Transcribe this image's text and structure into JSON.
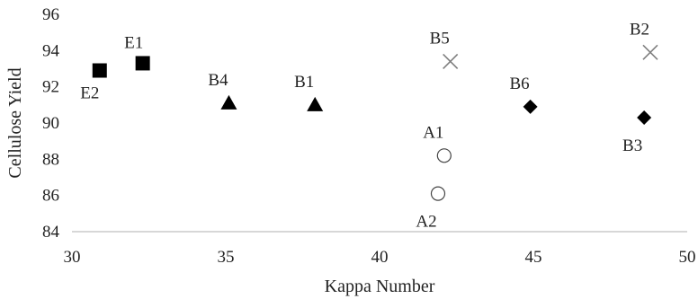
{
  "chart_data": {
    "type": "scatter",
    "xlabel": "Kappa Number",
    "ylabel": "Cellulose Yield",
    "xlim": [
      30,
      50
    ],
    "ylim": [
      84,
      96
    ],
    "xticks": [
      "30",
      "35",
      "40",
      "45",
      "50"
    ],
    "yticks": [
      "84",
      "86",
      "88",
      "90",
      "92",
      "94",
      "96"
    ],
    "grid": false,
    "legend": "none",
    "series": [
      {
        "marker": "square",
        "color": "#000000",
        "points": [
          {
            "label": "E1",
            "x": 32.3,
            "y": 93.3,
            "label_pos": "upper-left"
          },
          {
            "label": "E2",
            "x": 30.9,
            "y": 92.9,
            "label_pos": "lower-left"
          }
        ]
      },
      {
        "marker": "triangle",
        "color": "#000000",
        "points": [
          {
            "label": "B4",
            "x": 35.1,
            "y": 91.1,
            "label_pos": "above-left"
          },
          {
            "label": "B1",
            "x": 37.9,
            "y": 91.0,
            "label_pos": "above-left"
          }
        ]
      },
      {
        "marker": "cross",
        "color": "#7f7f7f",
        "points": [
          {
            "label": "B5",
            "x": 42.3,
            "y": 93.4,
            "label_pos": "above-left"
          },
          {
            "label": "B2",
            "x": 48.8,
            "y": 93.9,
            "label_pos": "above-left"
          }
        ]
      },
      {
        "marker": "diamond",
        "color": "#000000",
        "points": [
          {
            "label": "B6",
            "x": 44.9,
            "y": 90.9,
            "label_pos": "above-left"
          },
          {
            "label": "B3",
            "x": 48.6,
            "y": 90.3,
            "label_pos": "below-left"
          }
        ]
      },
      {
        "marker": "circle-open",
        "color": "#444444",
        "points": [
          {
            "label": "A1",
            "x": 42.1,
            "y": 88.2,
            "label_pos": "above-left"
          },
          {
            "label": "A2",
            "x": 41.9,
            "y": 86.1,
            "label_pos": "below-left"
          }
        ]
      }
    ]
  }
}
